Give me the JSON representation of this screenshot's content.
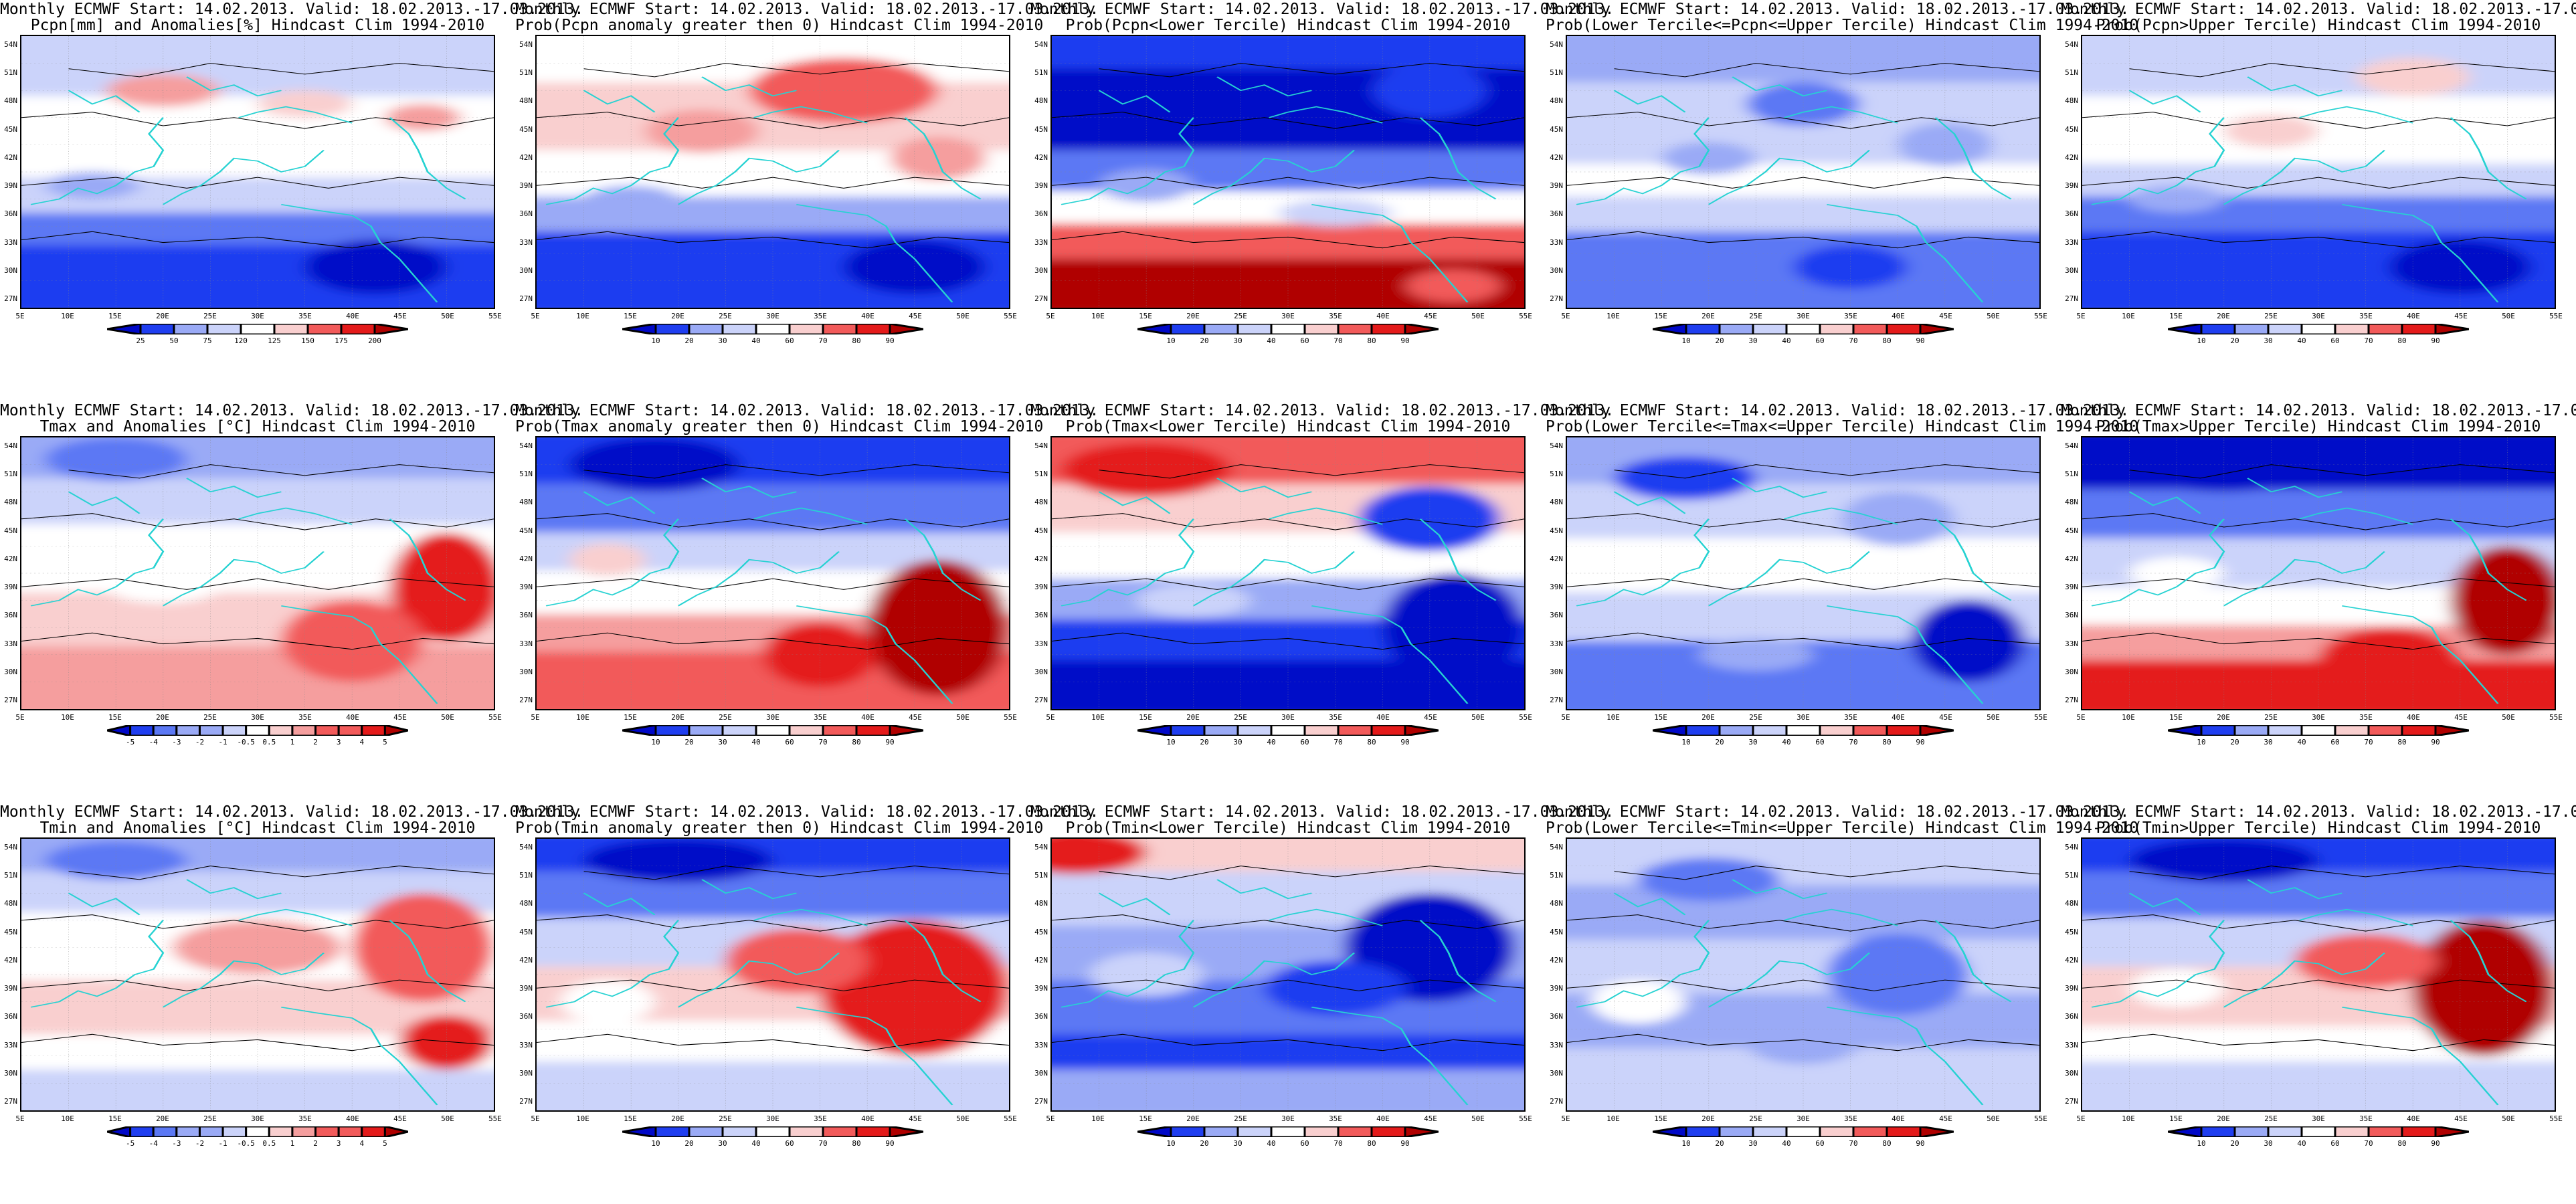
{
  "title_line1": "Monthly ECMWF Start: 14.02.2013. Valid: 18.02.2013.-17.03.2013.",
  "lat_labels": [
    "54N",
    "51N",
    "48N",
    "45N",
    "42N",
    "39N",
    "36N",
    "33N",
    "30N",
    "27N"
  ],
  "lon_labels": [
    "5E",
    "10E",
    "15E",
    "20E",
    "25E",
    "30E",
    "35E",
    "40E",
    "45E",
    "50E",
    "55E"
  ],
  "colors": {
    "blue_dark": "#0008c8",
    "blue": "#1f3ef0",
    "blue_mid": "#5b78f4",
    "blue_light": "#9aaaf6",
    "blue_pale": "#cbd3fa",
    "white": "#ffffff",
    "red_pale": "#f9cfcf",
    "red_light": "#f59e9e",
    "red": "#f25a5a",
    "red_strong": "#e41a1a",
    "red_dark": "#b00000",
    "coast": "#26d2d2",
    "contour": "#000000"
  },
  "panels": [
    {
      "title2": "Pcpn[mm] and Anomalies[%] Hindcast Clim 1994-2010",
      "colorbar": [
        "25",
        "50",
        "75",
        "120",
        "125",
        "150",
        "175",
        "200"
      ],
      "pattern": "pcpn_anom"
    },
    {
      "title2": "Prob(Pcpn anomaly greater then 0) Hindcast Clim 1994-2010",
      "colorbar": [
        "10",
        "20",
        "30",
        "40",
        "60",
        "70",
        "80",
        "90"
      ],
      "pattern": "pcpn_prob"
    },
    {
      "title2": "Prob(Pcpn<Lower Tercile) Hindcast Clim 1994-2010",
      "colorbar": [
        "10",
        "20",
        "30",
        "40",
        "60",
        "70",
        "80",
        "90"
      ],
      "pattern": "pcpn_lower"
    },
    {
      "title2": "Prob(Lower Tercile<=Pcpn<=Upper Tercile) Hindcast Clim 1994-2010",
      "colorbar": [
        "10",
        "20",
        "30",
        "40",
        "60",
        "70",
        "80",
        "90"
      ],
      "pattern": "pcpn_mid"
    },
    {
      "title2": "Prob(Pcpn>Upper Tercile) Hindcast Clim 1994-2010",
      "colorbar": [
        "10",
        "20",
        "30",
        "40",
        "60",
        "70",
        "80",
        "90"
      ],
      "pattern": "pcpn_upper"
    },
    {
      "title2": "Tmax and Anomalies [°C] Hindcast Clim 1994-2010",
      "colorbar": [
        "-5",
        "-4",
        "-3",
        "-2",
        "-1",
        "-0.5",
        "0.5",
        "1",
        "2",
        "3",
        "4",
        "5"
      ],
      "pattern": "tmax_anom"
    },
    {
      "title2": "Prob(Tmax anomaly greater then 0) Hindcast Clim 1994-2010",
      "colorbar": [
        "10",
        "20",
        "30",
        "40",
        "60",
        "70",
        "80",
        "90"
      ],
      "pattern": "tmax_prob"
    },
    {
      "title2": "Prob(Tmax<Lower Tercile) Hindcast Clim 1994-2010",
      "colorbar": [
        "10",
        "20",
        "30",
        "40",
        "60",
        "70",
        "80",
        "90"
      ],
      "pattern": "tmax_lower"
    },
    {
      "title2": "Prob(Lower Tercile<=Tmax<=Upper Tercile) Hindcast Clim 1994-2010",
      "colorbar": [
        "10",
        "20",
        "30",
        "40",
        "60",
        "70",
        "80",
        "90"
      ],
      "pattern": "tmax_mid"
    },
    {
      "title2": "Prob(Tmax>Upper Tercile) Hindcast Clim 1994-2010",
      "colorbar": [
        "10",
        "20",
        "30",
        "40",
        "60",
        "70",
        "80",
        "90"
      ],
      "pattern": "tmax_upper"
    },
    {
      "title2": "Tmin and Anomalies [°C] Hindcast Clim 1994-2010",
      "colorbar": [
        "-5",
        "-4",
        "-3",
        "-2",
        "-1",
        "-0.5",
        "0.5",
        "1",
        "2",
        "3",
        "4",
        "5"
      ],
      "pattern": "tmin_anom"
    },
    {
      "title2": "Prob(Tmin anomaly greater then 0) Hindcast Clim 1994-2010",
      "colorbar": [
        "10",
        "20",
        "30",
        "40",
        "60",
        "70",
        "80",
        "90"
      ],
      "pattern": "tmin_prob"
    },
    {
      "title2": "Prob(Tmin<Lower Tercile) Hindcast Clim 1994-2010",
      "colorbar": [
        "10",
        "20",
        "30",
        "40",
        "60",
        "70",
        "80",
        "90"
      ],
      "pattern": "tmin_lower"
    },
    {
      "title2": "Prob(Lower Tercile<=Tmin<=Upper Tercile) Hindcast Clim 1994-2010",
      "colorbar": [
        "10",
        "20",
        "30",
        "40",
        "60",
        "70",
        "80",
        "90"
      ],
      "pattern": "tmin_mid"
    },
    {
      "title2": "Prob(Tmin>Upper Tercile) Hindcast Clim 1994-2010",
      "colorbar": [
        "10",
        "20",
        "30",
        "40",
        "60",
        "70",
        "80",
        "90"
      ],
      "pattern": "tmin_upper"
    }
  ]
}
